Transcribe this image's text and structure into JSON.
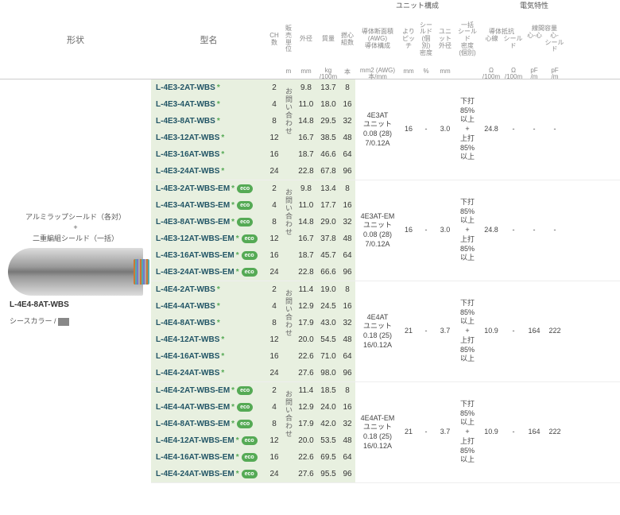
{
  "headers": {
    "shape": "形状",
    "model": "型名",
    "group_unit": "ユニット構成",
    "group_elec": "電気特性",
    "cols": {
      "ch": "CH\n数",
      "sale_unit": "販売\n単位",
      "od": "外径",
      "weight": "質量",
      "core_pairs": "撚心\n組数",
      "conductor": "導体断面積\n(AWG)\n導体構成",
      "pitch": "より\nピッチ",
      "shield_den": "シールド\n(個別)\n密度",
      "unit_od": "ユニ\nット\n外径",
      "batch_shield": "一括\nシールド\n密度\n(個別)",
      "cond_res": "導体抵抗",
      "cond_res_sub1": "心線",
      "cond_res_sub2": "シールド",
      "cap": "線間容量",
      "cap_sub1": "心-心",
      "cap_sub2": "心-\nシールド"
    },
    "units": {
      "ch": "",
      "sale_unit": "m",
      "od": "mm",
      "weight": "kg\n/100m",
      "core_pairs": "本",
      "conductor": "mm2 (AWG)\n本/mm",
      "pitch": "mm",
      "shield_den": "%",
      "unit_od": "mm",
      "batch_shield": "",
      "res1": "Ω\n/100m",
      "res2": "Ω\n/100m",
      "cap1": "pF\n/m",
      "cap2": "pF\n/m"
    }
  },
  "left_panel": {
    "line1": "アルミラップシールド（各対）",
    "plus": "+",
    "line2": "二重編組シールド（一括）",
    "product_label": "L-4E4-8AT-WBS",
    "sheath_label": "シースカラー /",
    "sheath_color": "灰"
  },
  "inquiry_text": "お問い合わせ",
  "groups": [
    {
      "rows": [
        {
          "model": "L-4E3-2AT-WBS",
          "eco": false,
          "ch": "2",
          "od": "9.8",
          "wt": "13.7",
          "cn": "8"
        },
        {
          "model": "L-4E3-4AT-WBS",
          "eco": false,
          "ch": "4",
          "od": "11.0",
          "wt": "18.0",
          "cn": "16"
        },
        {
          "model": "L-4E3-8AT-WBS",
          "eco": false,
          "ch": "8",
          "od": "14.8",
          "wt": "29.5",
          "cn": "32"
        },
        {
          "model": "L-4E3-12AT-WBS",
          "eco": false,
          "ch": "12",
          "od": "16.7",
          "wt": "38.5",
          "cn": "48"
        },
        {
          "model": "L-4E3-16AT-WBS",
          "eco": false,
          "ch": "16",
          "od": "18.7",
          "wt": "46.6",
          "cn": "64"
        },
        {
          "model": "L-4E3-24AT-WBS",
          "eco": false,
          "ch": "24",
          "od": "22.8",
          "wt": "67.8",
          "cn": "96"
        }
      ],
      "shared": {
        "conductor": "4E3AT\nユニット\n0.08 (28)\n7/0.12A",
        "pitch": "16",
        "shield_den": "-",
        "unit_od": "3.0",
        "batch": "下打\n85%\n以上\n+\n上打\n85%\n以上",
        "res1": "24.8",
        "res2": "-",
        "cap1": "-",
        "cap2": "-"
      }
    },
    {
      "rows": [
        {
          "model": "L-4E3-2AT-WBS-EM",
          "eco": true,
          "ch": "2",
          "od": "9.8",
          "wt": "13.4",
          "cn": "8"
        },
        {
          "model": "L-4E3-4AT-WBS-EM",
          "eco": true,
          "ch": "4",
          "od": "11.0",
          "wt": "17.7",
          "cn": "16"
        },
        {
          "model": "L-4E3-8AT-WBS-EM",
          "eco": true,
          "ch": "8",
          "od": "14.8",
          "wt": "29.0",
          "cn": "32"
        },
        {
          "model": "L-4E3-12AT-WBS-EM",
          "eco": true,
          "ch": "12",
          "od": "16.7",
          "wt": "37.8",
          "cn": "48"
        },
        {
          "model": "L-4E3-16AT-WBS-EM",
          "eco": true,
          "ch": "16",
          "od": "18.7",
          "wt": "45.7",
          "cn": "64"
        },
        {
          "model": "L-4E3-24AT-WBS-EM",
          "eco": true,
          "ch": "24",
          "od": "22.8",
          "wt": "66.6",
          "cn": "96"
        }
      ],
      "shared": {
        "conductor": "4E3AT-EM\nユニット\n0.08 (28)\n7/0.12A",
        "pitch": "16",
        "shield_den": "-",
        "unit_od": "3.0",
        "batch": "下打\n85%\n以上\n+\n上打\n85%\n以上",
        "res1": "24.8",
        "res2": "-",
        "cap1": "-",
        "cap2": "-"
      }
    },
    {
      "rows": [
        {
          "model": "L-4E4-2AT-WBS",
          "eco": false,
          "ch": "2",
          "od": "11.4",
          "wt": "19.0",
          "cn": "8"
        },
        {
          "model": "L-4E4-4AT-WBS",
          "eco": false,
          "ch": "4",
          "od": "12.9",
          "wt": "24.5",
          "cn": "16"
        },
        {
          "model": "L-4E4-8AT-WBS",
          "eco": false,
          "ch": "8",
          "od": "17.9",
          "wt": "43.0",
          "cn": "32"
        },
        {
          "model": "L-4E4-12AT-WBS",
          "eco": false,
          "ch": "12",
          "od": "20.0",
          "wt": "54.5",
          "cn": "48"
        },
        {
          "model": "L-4E4-16AT-WBS",
          "eco": false,
          "ch": "16",
          "od": "22.6",
          "wt": "71.0",
          "cn": "64"
        },
        {
          "model": "L-4E4-24AT-WBS",
          "eco": false,
          "ch": "24",
          "od": "27.6",
          "wt": "98.0",
          "cn": "96"
        }
      ],
      "shared": {
        "conductor": "4E4AT\nユニット\n0.18 (25)\n16/0.12A",
        "pitch": "21",
        "shield_den": "-",
        "unit_od": "3.7",
        "batch": "下打\n85%\n以上\n+\n上打\n85%\n以上",
        "res1": "10.9",
        "res2": "-",
        "cap1": "164",
        "cap2": "222"
      }
    },
    {
      "rows": [
        {
          "model": "L-4E4-2AT-WBS-EM",
          "eco": true,
          "ch": "2",
          "od": "11.4",
          "wt": "18.5",
          "cn": "8"
        },
        {
          "model": "L-4E4-4AT-WBS-EM",
          "eco": true,
          "ch": "4",
          "od": "12.9",
          "wt": "24.0",
          "cn": "16"
        },
        {
          "model": "L-4E4-8AT-WBS-EM",
          "eco": true,
          "ch": "8",
          "od": "17.9",
          "wt": "42.0",
          "cn": "32"
        },
        {
          "model": "L-4E4-12AT-WBS-EM",
          "eco": true,
          "ch": "12",
          "od": "20.0",
          "wt": "53.5",
          "cn": "48"
        },
        {
          "model": "L-4E4-16AT-WBS-EM",
          "eco": true,
          "ch": "16",
          "od": "22.6",
          "wt": "69.5",
          "cn": "64"
        },
        {
          "model": "L-4E4-24AT-WBS-EM",
          "eco": true,
          "ch": "24",
          "od": "27.6",
          "wt": "95.5",
          "cn": "96"
        }
      ],
      "shared": {
        "conductor": "4E4AT-EM\nユニット\n0.18 (25)\n16/0.12A",
        "pitch": "21",
        "shield_den": "-",
        "unit_od": "3.7",
        "batch": "下打\n85%\n以上\n+\n上打\n85%\n以上",
        "res1": "10.9",
        "res2": "-",
        "cap1": "164",
        "cap2": "222"
      }
    }
  ]
}
